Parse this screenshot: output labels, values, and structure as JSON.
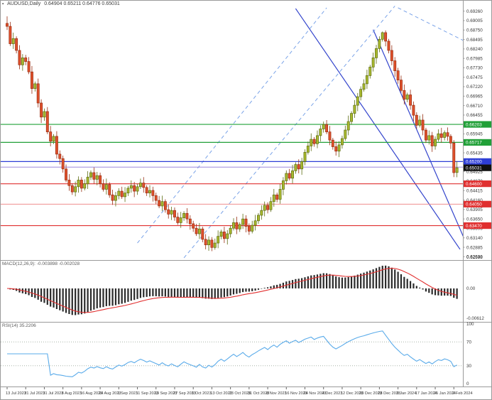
{
  "window": {
    "symbol": "AUDUSD,Daily",
    "ohlc": "0.64904 0.65211 0.64776 0.65031"
  },
  "colors": {
    "bull": "#a9b92e",
    "bull_edge": "#5d6d12",
    "bear": "#e0512c",
    "bear_edge": "#992e12",
    "trend_blue": "#3344cc",
    "dash_blue": "#7aa3e8",
    "green_line": "#21a038",
    "blue_line": "#2e3ed6",
    "violet_line": "#8f76d8",
    "red_line": "#e03030",
    "red_line_light": "#ef8f8f",
    "macd_hist": "#2a2a2a",
    "macd_signal": "#e23030",
    "rsi_line": "#5aabea",
    "level_dotted": "#a8b4a8",
    "axis_text": "#3a3a3a",
    "frame": "#9a9a9a",
    "flag_black": "#101010"
  },
  "price_axis": {
    "labels": [
      "0.69260",
      "0.69005",
      "0.68750",
      "0.68495",
      "0.68240",
      "0.67985",
      "0.67730",
      "0.67475",
      "0.67220",
      "0.66965",
      "0.66710",
      "0.66455",
      "0.66200",
      "0.65945",
      "0.65690",
      "0.65435",
      "0.65180",
      "0.64925",
      "0.64670",
      "0.64415",
      "0.64160",
      "0.63905",
      "0.63650",
      "0.63395",
      "0.63140",
      "0.62885",
      "0.62630"
    ],
    "min_label": "0.62598",
    "flags": [
      {
        "name": "price-flag-green-upper",
        "text": "0.66203",
        "price": 0.66203,
        "color": "#21a038"
      },
      {
        "name": "price-flag-green-lower",
        "text": "0.65717",
        "price": 0.65717,
        "color": "#21a038"
      },
      {
        "name": "price-flag-blue",
        "text": "0.65200",
        "price": 0.652,
        "color": "#2e3ed6"
      },
      {
        "name": "price-flag-current-bid",
        "text": "0.65031",
        "price": 0.65031,
        "color": "#101010"
      },
      {
        "name": "price-flag-red-1",
        "text": "0.64600",
        "price": 0.646,
        "color": "#e03030"
      },
      {
        "name": "price-flag-red-2",
        "text": "0.64050",
        "price": 0.6405,
        "color": "#e03030"
      },
      {
        "name": "price-flag-red-3",
        "text": "0.63470",
        "price": 0.6347,
        "color": "#e03030"
      }
    ]
  },
  "hlines": [
    {
      "name": "resistance-green-upper",
      "price": 0.66203,
      "color": "#21a038",
      "w": 1.2
    },
    {
      "name": "resistance-green-lower",
      "price": 0.65717,
      "color": "#21a038",
      "w": 1.2
    },
    {
      "name": "level-blue",
      "price": 0.652,
      "color": "#2e3ed6",
      "w": 1.3
    },
    {
      "name": "level-violet",
      "price": 0.6505,
      "color": "#8f76d8",
      "w": 0.9
    },
    {
      "name": "support-red-1",
      "price": 0.646,
      "color": "#e03030",
      "w": 1.1
    },
    {
      "name": "support-red-2",
      "price": 0.6405,
      "color": "#ef8f8f",
      "w": 1.0
    },
    {
      "name": "support-red-3",
      "price": 0.6347,
      "color": "#e03030",
      "w": 1.1
    }
  ],
  "trendlines": [
    {
      "name": "downtrend-line-1",
      "b1": 93,
      "p1": 0.6933,
      "b2": 146,
      "p2": 0.6283,
      "color": "#3344cc",
      "w": 1.2
    },
    {
      "name": "downtrend-line-2",
      "b1": 118,
      "p1": 0.6876,
      "b2": 149,
      "p2": 0.628,
      "color": "#3344cc",
      "w": 1.2
    },
    {
      "name": "uptrend-dashed-1",
      "b1": 42,
      "p1": 0.63,
      "b2": 103,
      "p2": 0.6935,
      "color": "#7aa3e8",
      "w": 1,
      "dash": "5,4"
    },
    {
      "name": "uptrend-dashed-2",
      "b1": 57,
      "p1": 0.626,
      "b2": 125,
      "p2": 0.694,
      "color": "#7aa3e8",
      "w": 1,
      "dash": "5,4"
    },
    {
      "name": "downtrend-dashed-3",
      "b1": 126,
      "p1": 0.6935,
      "b2": 153,
      "p2": 0.6822,
      "color": "#7aa3e8",
      "w": 1,
      "dash": "5,4"
    }
  ],
  "macd": {
    "label": "MACD(12,26,9): -0.003898 -0.002028",
    "zero_label": "0.00",
    "min_label": "-0.00612"
  },
  "rsi": {
    "label": "RSI(14) 35.2206",
    "levels": [
      70,
      30
    ],
    "axis_labels": [
      "100",
      "70",
      "30",
      "0"
    ]
  },
  "date_axis": {
    "ticks": [
      "13 Jul 2023",
      "21 Jul 2023",
      "31 Jul 2023",
      "8 Aug 2023",
      "16 Aug 2023",
      "24 Aug 2023",
      "1 Sep 2023",
      "11 Sep 2023",
      "19 Sep 2023",
      "27 Sep 2023",
      "5 Oct 2023",
      "13 Oct 2023",
      "23 Oct 2023",
      "31 Oct 2023",
      "8 Nov 2023",
      "16 Nov 2023",
      "24 Nov 2023",
      "4 Dec 2023",
      "12 Dec 2023",
      "20 Dec 2023",
      "28 Dec 2023",
      "9 Jan 2024",
      "17 Jan 2024",
      "25 Jan 2024",
      "2 Feb 2024"
    ]
  },
  "chart_data": {
    "type": "candlestick",
    "symbol": "AUDUSD",
    "timeframe": "Daily",
    "title": "AUDUSD,Daily 0.64904 0.65211 0.64776 0.65031",
    "ylim": [
      0.6256,
      0.6935
    ],
    "x_first": "13 Jul 2023",
    "x_last": "2 Feb 2024",
    "indicators": [
      "MACD(12,26,9)",
      "RSI(14)"
    ],
    "candles": [
      [
        0.6893,
        0.6912,
        0.6875,
        0.6885
      ],
      [
        0.6885,
        0.6897,
        0.6832,
        0.6838
      ],
      [
        0.6838,
        0.6868,
        0.6824,
        0.6852
      ],
      [
        0.6852,
        0.6858,
        0.6812,
        0.682
      ],
      [
        0.682,
        0.6834,
        0.6769,
        0.6781
      ],
      [
        0.6781,
        0.681,
        0.6765,
        0.68
      ],
      [
        0.68,
        0.6808,
        0.678,
        0.679
      ],
      [
        0.679,
        0.6802,
        0.6756,
        0.6762
      ],
      [
        0.6762,
        0.6778,
        0.6703,
        0.6717
      ],
      [
        0.6717,
        0.6736,
        0.6709,
        0.673
      ],
      [
        0.673,
        0.6744,
        0.6666,
        0.6678
      ],
      [
        0.6678,
        0.6688,
        0.6624,
        0.664
      ],
      [
        0.664,
        0.6663,
        0.663,
        0.6655
      ],
      [
        0.6655,
        0.6667,
        0.6594,
        0.66
      ],
      [
        0.66,
        0.6616,
        0.6561,
        0.6575
      ],
      [
        0.6575,
        0.6594,
        0.6567,
        0.6588
      ],
      [
        0.6588,
        0.6602,
        0.6528,
        0.654
      ],
      [
        0.654,
        0.655,
        0.6512,
        0.6528
      ],
      [
        0.6528,
        0.6536,
        0.649,
        0.65
      ],
      [
        0.65,
        0.6512,
        0.6464,
        0.647
      ],
      [
        0.647,
        0.6486,
        0.6441,
        0.6455
      ],
      [
        0.6455,
        0.6461,
        0.643,
        0.6438
      ],
      [
        0.6438,
        0.6466,
        0.6426,
        0.6452
      ],
      [
        0.6452,
        0.648,
        0.6436,
        0.647
      ],
      [
        0.647,
        0.6478,
        0.6438,
        0.6448
      ],
      [
        0.6448,
        0.6472,
        0.6442,
        0.646
      ],
      [
        0.646,
        0.6494,
        0.6446,
        0.6478
      ],
      [
        0.6478,
        0.6496,
        0.647,
        0.649
      ],
      [
        0.649,
        0.6504,
        0.646,
        0.6472
      ],
      [
        0.6472,
        0.6492,
        0.6456,
        0.6482
      ],
      [
        0.6482,
        0.649,
        0.645,
        0.646
      ],
      [
        0.646,
        0.6472,
        0.6439,
        0.6445
      ],
      [
        0.6445,
        0.6474,
        0.6431,
        0.6458
      ],
      [
        0.6458,
        0.6464,
        0.6422,
        0.643
      ],
      [
        0.643,
        0.6444,
        0.6403,
        0.6415
      ],
      [
        0.6415,
        0.6438,
        0.6399,
        0.6428
      ],
      [
        0.6428,
        0.6448,
        0.6418,
        0.644
      ],
      [
        0.644,
        0.6452,
        0.6419,
        0.6425
      ],
      [
        0.6425,
        0.6451,
        0.6411,
        0.6435
      ],
      [
        0.6435,
        0.6454,
        0.6427,
        0.6448
      ],
      [
        0.6448,
        0.6469,
        0.6436,
        0.6455
      ],
      [
        0.6455,
        0.6465,
        0.6424,
        0.644
      ],
      [
        0.644,
        0.646,
        0.643,
        0.6452
      ],
      [
        0.6452,
        0.6474,
        0.6446,
        0.6462
      ],
      [
        0.6462,
        0.6478,
        0.6436,
        0.645
      ],
      [
        0.645,
        0.6456,
        0.6427,
        0.6435
      ],
      [
        0.6435,
        0.6456,
        0.6423,
        0.6442
      ],
      [
        0.6442,
        0.6452,
        0.6412,
        0.6428
      ],
      [
        0.6428,
        0.6436,
        0.6405,
        0.6415
      ],
      [
        0.6415,
        0.6427,
        0.6394,
        0.64
      ],
      [
        0.64,
        0.6428,
        0.6386,
        0.6412
      ],
      [
        0.6412,
        0.6418,
        0.6382,
        0.639
      ],
      [
        0.639,
        0.6404,
        0.6366,
        0.6378
      ],
      [
        0.6378,
        0.6398,
        0.6362,
        0.6388
      ],
      [
        0.6388,
        0.6396,
        0.636,
        0.637
      ],
      [
        0.637,
        0.6382,
        0.6349,
        0.6355
      ],
      [
        0.6355,
        0.6384,
        0.6341,
        0.6368
      ],
      [
        0.6368,
        0.6386,
        0.636,
        0.638
      ],
      [
        0.638,
        0.6394,
        0.6353,
        0.6365
      ],
      [
        0.6365,
        0.6375,
        0.6336,
        0.6352
      ],
      [
        0.6352,
        0.636,
        0.633,
        0.634
      ],
      [
        0.634,
        0.6352,
        0.6319,
        0.6325
      ],
      [
        0.6325,
        0.6354,
        0.6311,
        0.6338
      ],
      [
        0.6338,
        0.6344,
        0.6302,
        0.631
      ],
      [
        0.631,
        0.6324,
        0.6283,
        0.6295
      ],
      [
        0.6295,
        0.6318,
        0.6279,
        0.6308
      ],
      [
        0.6308,
        0.6316,
        0.6278,
        0.6288
      ],
      [
        0.6288,
        0.6312,
        0.6282,
        0.63
      ],
      [
        0.63,
        0.6334,
        0.6286,
        0.6318
      ],
      [
        0.6318,
        0.6336,
        0.631,
        0.633
      ],
      [
        0.633,
        0.6344,
        0.63,
        0.6312
      ],
      [
        0.6312,
        0.6335,
        0.6296,
        0.6325
      ],
      [
        0.6325,
        0.6348,
        0.6315,
        0.634
      ],
      [
        0.634,
        0.6367,
        0.6334,
        0.6355
      ],
      [
        0.6355,
        0.6371,
        0.6324,
        0.6338
      ],
      [
        0.6338,
        0.6356,
        0.633,
        0.635
      ],
      [
        0.635,
        0.6379,
        0.6338,
        0.6365
      ],
      [
        0.6365,
        0.6375,
        0.6329,
        0.6345
      ],
      [
        0.6345,
        0.6353,
        0.6322,
        0.6332
      ],
      [
        0.6332,
        0.636,
        0.6326,
        0.6348
      ],
      [
        0.6348,
        0.6376,
        0.6334,
        0.636
      ],
      [
        0.636,
        0.6381,
        0.6352,
        0.6375
      ],
      [
        0.6375,
        0.6402,
        0.6363,
        0.6388
      ],
      [
        0.6388,
        0.6412,
        0.6372,
        0.6402
      ],
      [
        0.6402,
        0.641,
        0.638,
        0.639
      ],
      [
        0.639,
        0.6424,
        0.6384,
        0.6412
      ],
      [
        0.6412,
        0.6446,
        0.6398,
        0.643
      ],
      [
        0.643,
        0.6436,
        0.641,
        0.6418
      ],
      [
        0.6418,
        0.6459,
        0.6406,
        0.6445
      ],
      [
        0.6445,
        0.6478,
        0.6429,
        0.6468
      ],
      [
        0.6468,
        0.6496,
        0.6458,
        0.6488
      ],
      [
        0.6488,
        0.65,
        0.6469,
        0.6475
      ],
      [
        0.6475,
        0.6511,
        0.6461,
        0.6495
      ],
      [
        0.6495,
        0.6518,
        0.6487,
        0.6512
      ],
      [
        0.6512,
        0.6526,
        0.6488,
        0.65
      ],
      [
        0.65,
        0.653,
        0.6484,
        0.652
      ],
      [
        0.652,
        0.6553,
        0.651,
        0.6545
      ],
      [
        0.6545,
        0.6574,
        0.6539,
        0.6562
      ],
      [
        0.6562,
        0.6596,
        0.6548,
        0.658
      ],
      [
        0.658,
        0.6586,
        0.656,
        0.6568
      ],
      [
        0.6568,
        0.6604,
        0.6556,
        0.659
      ],
      [
        0.659,
        0.6618,
        0.6574,
        0.6608
      ],
      [
        0.6608,
        0.6628,
        0.6598,
        0.662
      ],
      [
        0.662,
        0.6632,
        0.6594,
        0.66
      ],
      [
        0.66,
        0.6616,
        0.6564,
        0.6578
      ],
      [
        0.6578,
        0.6584,
        0.6552,
        0.656
      ],
      [
        0.656,
        0.6574,
        0.6536,
        0.6548
      ],
      [
        0.6548,
        0.6575,
        0.6532,
        0.6565
      ],
      [
        0.6565,
        0.659,
        0.6555,
        0.6582
      ],
      [
        0.6582,
        0.6617,
        0.6576,
        0.6605
      ],
      [
        0.6605,
        0.6644,
        0.6591,
        0.6628
      ],
      [
        0.6628,
        0.6656,
        0.662,
        0.665
      ],
      [
        0.665,
        0.6686,
        0.6638,
        0.6672
      ],
      [
        0.6672,
        0.6705,
        0.6656,
        0.6695
      ],
      [
        0.6695,
        0.6723,
        0.6685,
        0.6715
      ],
      [
        0.6715,
        0.6742,
        0.6709,
        0.673
      ],
      [
        0.673,
        0.6768,
        0.6716,
        0.6752
      ],
      [
        0.6752,
        0.6781,
        0.6744,
        0.6775
      ],
      [
        0.6775,
        0.6814,
        0.6763,
        0.68
      ],
      [
        0.68,
        0.6835,
        0.6784,
        0.6825
      ],
      [
        0.6825,
        0.6858,
        0.6815,
        0.685
      ],
      [
        0.685,
        0.6871,
        0.6844,
        0.6868
      ],
      [
        0.6868,
        0.6874,
        0.6831,
        0.6845
      ],
      [
        0.6845,
        0.6851,
        0.6812,
        0.682
      ],
      [
        0.682,
        0.6834,
        0.678,
        0.6792
      ],
      [
        0.6792,
        0.6802,
        0.6749,
        0.6765
      ],
      [
        0.6765,
        0.6773,
        0.673,
        0.674
      ],
      [
        0.674,
        0.6752,
        0.6706,
        0.6712
      ],
      [
        0.6712,
        0.6728,
        0.6674,
        0.6688
      ],
      [
        0.6688,
        0.6706,
        0.668,
        0.67
      ],
      [
        0.67,
        0.6714,
        0.666,
        0.6672
      ],
      [
        0.6672,
        0.6682,
        0.6629,
        0.6645
      ],
      [
        0.6645,
        0.6653,
        0.6608,
        0.6618
      ],
      [
        0.6618,
        0.6644,
        0.6612,
        0.6632
      ],
      [
        0.6632,
        0.6648,
        0.6591,
        0.6605
      ],
      [
        0.6605,
        0.6611,
        0.657,
        0.6578
      ],
      [
        0.6578,
        0.6604,
        0.6566,
        0.659
      ],
      [
        0.659,
        0.66,
        0.6546,
        0.6562
      ],
      [
        0.6562,
        0.6588,
        0.6552,
        0.658
      ],
      [
        0.658,
        0.6607,
        0.6574,
        0.6595
      ],
      [
        0.6595,
        0.6611,
        0.6571,
        0.6585
      ],
      [
        0.6585,
        0.6604,
        0.6577,
        0.6598
      ],
      [
        0.6598,
        0.6612,
        0.6576,
        0.6588
      ],
      [
        0.6588,
        0.6594,
        0.6554,
        0.657
      ],
      [
        0.657,
        0.6578,
        0.6478,
        0.649
      ],
      [
        0.64904,
        0.65211,
        0.64776,
        0.65031
      ]
    ]
  }
}
